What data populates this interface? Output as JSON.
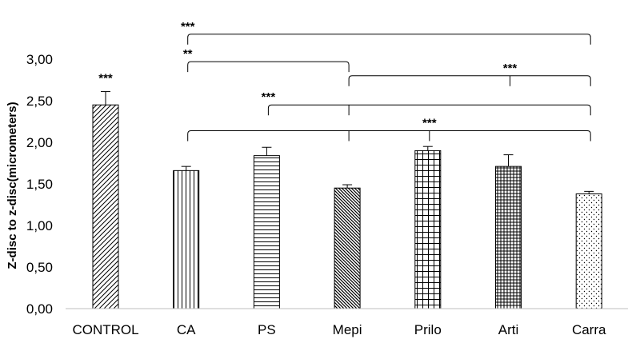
{
  "chart_data": {
    "type": "bar",
    "title": "",
    "xlabel": "",
    "ylabel": "Z-disc to z-disc(micrometers)",
    "ylim": [
      0,
      3.0
    ],
    "yticks": [
      "0,00",
      "0,50",
      "1,00",
      "1,50",
      "2,00",
      "2,50",
      "3,00"
    ],
    "grid": false,
    "legend": "none",
    "categories": [
      "CONTROL",
      "CA",
      "PS",
      "Mepi",
      "Prilo",
      "Arti",
      "Carra"
    ],
    "values": [
      2.45,
      1.66,
      1.84,
      1.45,
      1.9,
      1.71,
      1.38
    ],
    "errors": [
      0.16,
      0.05,
      0.1,
      0.04,
      0.05,
      0.14,
      0.03
    ],
    "patterns": [
      "diagonal-up",
      "vertical",
      "horizontal",
      "diagonal-down",
      "grid",
      "dense-grid",
      "dots"
    ],
    "bar_value_labels": [
      {
        "category": "CONTROL",
        "text": "***"
      }
    ],
    "significance_brackets": [
      {
        "from": "CA",
        "to": "Carra",
        "ticks": [
          "CA",
          "Carra"
        ],
        "label": "***",
        "label_at": "left",
        "level": 3.3
      },
      {
        "from": "CA",
        "to": "Mepi",
        "ticks": [
          "CA",
          "Mepi"
        ],
        "label": "**",
        "label_at": "left",
        "level": 2.97
      },
      {
        "from": "Mepi",
        "to": "Carra",
        "ticks": [
          "Mepi",
          "Arti",
          "Carra"
        ],
        "label": "***",
        "label_at": "Arti",
        "level": 2.8
      },
      {
        "from": "PS",
        "to": "Carra",
        "ticks": [
          "PS",
          "Mepi",
          "Carra"
        ],
        "label": "***",
        "label_at": "left",
        "level": 2.45
      },
      {
        "from": "CA",
        "to": "Carra",
        "ticks": [
          "CA",
          "Mepi",
          "Prilo",
          "Carra"
        ],
        "label": "***",
        "label_at": "Prilo",
        "level": 2.14
      }
    ]
  }
}
